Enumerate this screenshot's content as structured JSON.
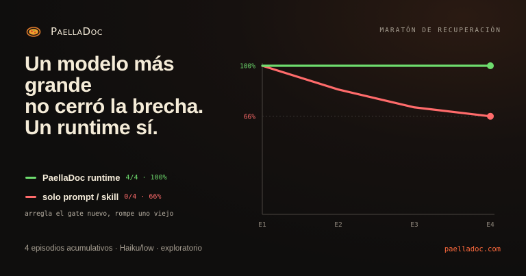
{
  "brand": {
    "name": "PaellaDoc"
  },
  "kicker": "MARATÓN DE RECUPERACIÓN",
  "headline": [
    "Un modelo más",
    "grande",
    "no cerró la brecha.",
    "Un runtime sí."
  ],
  "legend": [
    {
      "name": "PaellaDoc runtime",
      "stat": "4/4 · 100%",
      "color": "#6edc6e"
    },
    {
      "name": "solo prompt / skill",
      "stat": "0/4 · 66%",
      "color": "#ff6b6b"
    }
  ],
  "caption": "arregla el gate nuevo, rompe uno viejo",
  "footer": "4 episodios acumulativos · Haiku/low · exploratorio",
  "site": "paelladoc.com",
  "chart_data": {
    "type": "line",
    "x": [
      "E1",
      "E2",
      "E3",
      "E4"
    ],
    "ylim": [
      0,
      100
    ],
    "yticks": [
      {
        "value": 100,
        "label": "100%",
        "color": "#6edc6e"
      },
      {
        "value": 66,
        "label": "66%",
        "color": "#ff6b6b"
      }
    ],
    "series": [
      {
        "name": "PaellaDoc runtime",
        "values": [
          100,
          100,
          100,
          100
        ],
        "color": "#6edc6e"
      },
      {
        "name": "solo prompt / skill",
        "values": [
          100,
          84,
          72,
          66
        ],
        "color": "#ff6b6b"
      }
    ]
  }
}
